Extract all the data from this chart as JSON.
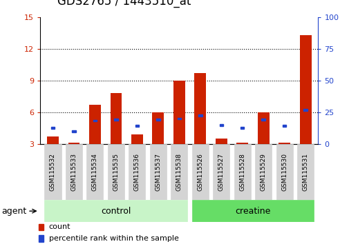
{
  "title": "GDS2765 / 1443510_at",
  "categories": [
    "GSM115532",
    "GSM115533",
    "GSM115534",
    "GSM115535",
    "GSM115536",
    "GSM115537",
    "GSM115538",
    "GSM115526",
    "GSM115527",
    "GSM115528",
    "GSM115529",
    "GSM115530",
    "GSM115531"
  ],
  "count_values": [
    3.7,
    3.1,
    6.7,
    7.8,
    3.9,
    6.0,
    9.0,
    9.7,
    3.5,
    3.1,
    6.0,
    3.1,
    13.3
  ],
  "percentile_values": [
    4.5,
    4.2,
    5.2,
    5.3,
    4.7,
    5.3,
    5.4,
    5.7,
    4.8,
    4.5,
    5.3,
    4.7,
    6.2
  ],
  "bar_bottom": 3.0,
  "ylim_left": [
    3,
    15
  ],
  "ylim_right": [
    0,
    100
  ],
  "yticks_left": [
    3,
    6,
    9,
    12,
    15
  ],
  "yticks_right": [
    0,
    25,
    50,
    75,
    100
  ],
  "control_indices": [
    0,
    1,
    2,
    3,
    4,
    5,
    6
  ],
  "creatine_indices": [
    7,
    8,
    9,
    10,
    11,
    12
  ],
  "control_color": "#c8f4c8",
  "creatine_color": "#66dd66",
  "group_row_label": "agent",
  "red_color": "#cc2200",
  "blue_color": "#2244cc",
  "bar_width": 0.55,
  "xticklabel_bg": "#d4d4d4",
  "legend_items": [
    {
      "label": "count",
      "color": "#cc2200"
    },
    {
      "label": "percentile rank within the sample",
      "color": "#2244cc"
    }
  ],
  "title_fontsize": 12,
  "tick_fontsize": 8,
  "label_fontsize": 9
}
